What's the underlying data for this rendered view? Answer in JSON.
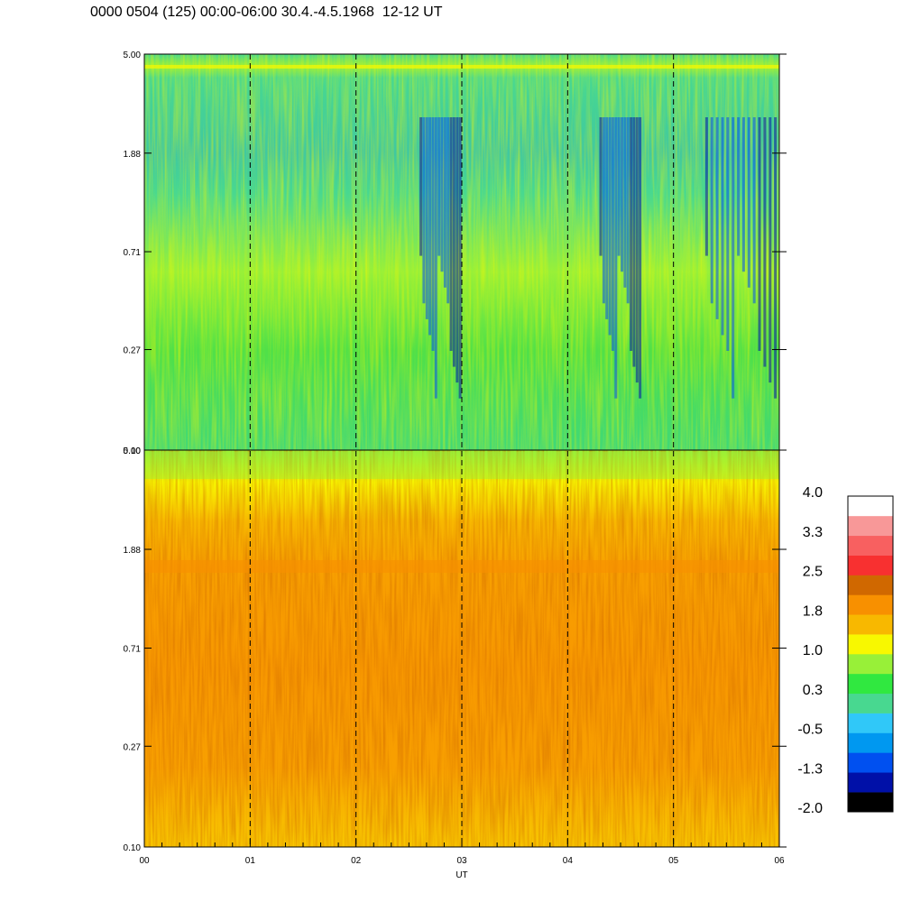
{
  "chart_data": {
    "type": "heatmap",
    "title": "0000 0504 (125) 00:00-06:00 30.4.-4.5.1968  12-12 UT",
    "xlabel": "UT",
    "x_ticks": [
      "00",
      "01",
      "02",
      "03",
      "04",
      "05",
      "06"
    ],
    "xlim": [
      0,
      6
    ],
    "grid": "dashed vertical lines at each hour",
    "panels": [
      {
        "name": "upper",
        "y_ticks": [
          "0.10",
          "0.27",
          "0.71",
          "1.88",
          "5.00"
        ],
        "ylim": [
          0.1,
          5.0
        ],
        "y_scale": "log",
        "dominant_levels": "green and cyan with blue features near 03 and 05-06",
        "blue_intervals": [
          [
            2.6,
            3.0
          ],
          [
            4.3,
            4.7
          ],
          [
            5.3,
            6.0
          ]
        ]
      },
      {
        "name": "lower",
        "y_ticks": [
          "0.10",
          "0.27",
          "0.71",
          "1.88",
          "5.00"
        ],
        "ylim": [
          0.1,
          5.0
        ],
        "y_scale": "log",
        "dominant_levels": "orange and yellow with a green band near the top"
      }
    ],
    "colorbar": {
      "tick_labels": [
        "4.0",
        "3.3",
        "2.5",
        "1.8",
        "1.0",
        "0.3",
        "-0.5",
        "-1.3",
        "-2.0"
      ],
      "range": [
        -2.0,
        4.0
      ],
      "colors": [
        "#000000",
        "#0010a8",
        "#0050f0",
        "#0098f0",
        "#30c8f8",
        "#48d890",
        "#30e840",
        "#98f038",
        "#f8f800",
        "#f8b800",
        "#f89000",
        "#d06800",
        "#f83030",
        "#f86060",
        "#f89898",
        "#ffffff"
      ]
    }
  }
}
